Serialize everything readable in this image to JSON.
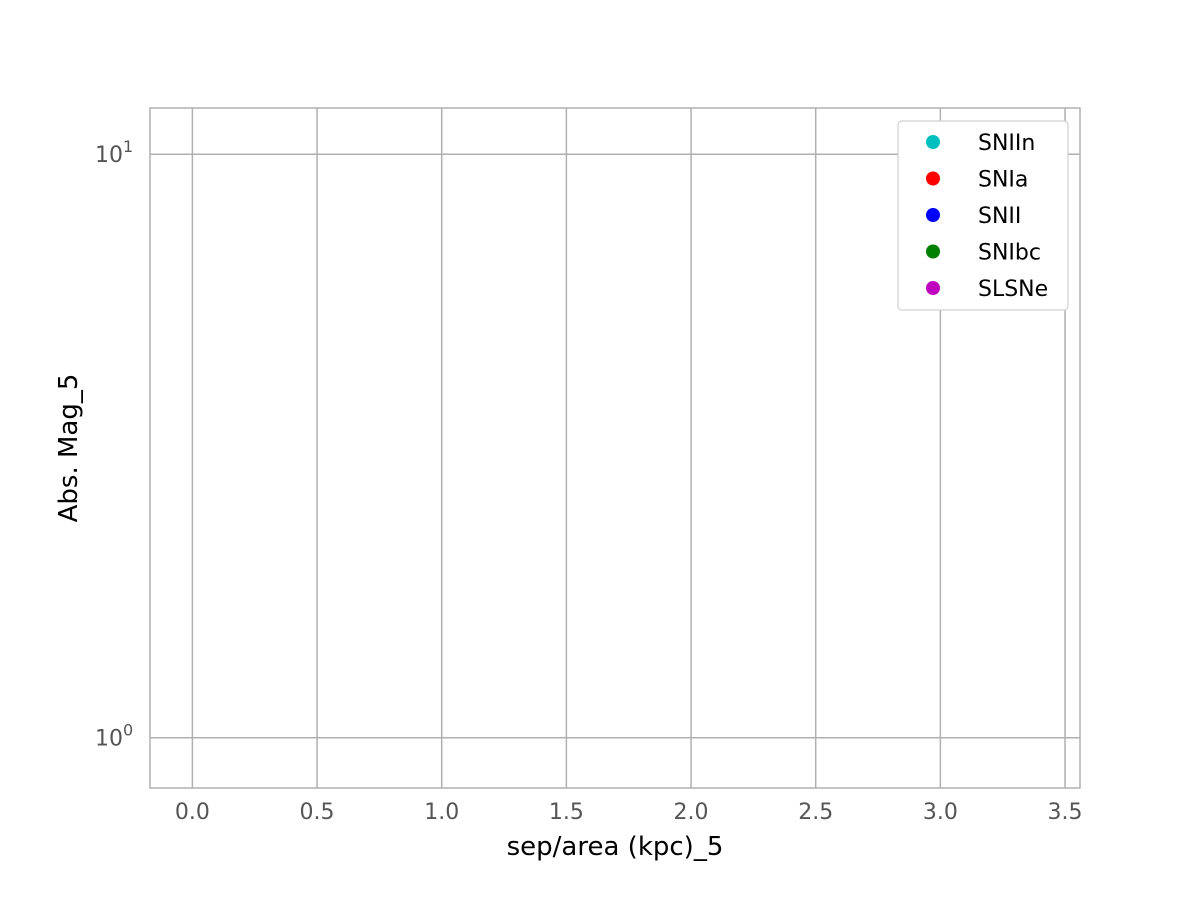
{
  "chart_data": {
    "type": "scatter",
    "xlabel": "sep/area (kpc)_5",
    "ylabel": "Abs. Mag_5",
    "xlim": [
      -0.17,
      3.56
    ],
    "ylim": [
      0.82,
      12.0
    ],
    "yscale": "log",
    "grid": true,
    "legend_position": "top-right",
    "x_ticks": [
      {
        "value": 0.0,
        "label": "0.0"
      },
      {
        "value": 0.5,
        "label": "0.5"
      },
      {
        "value": 1.0,
        "label": "1.0"
      },
      {
        "value": 1.5,
        "label": "1.5"
      },
      {
        "value": 2.0,
        "label": "2.0"
      },
      {
        "value": 2.5,
        "label": "2.5"
      },
      {
        "value": 3.0,
        "label": "3.0"
      },
      {
        "value": 3.5,
        "label": "3.5"
      }
    ],
    "y_ticks": [
      {
        "value": 1,
        "base": "10",
        "exp": "0"
      },
      {
        "value": 10,
        "base": "10",
        "exp": "1"
      }
    ],
    "series": [
      {
        "name": "SNIIn",
        "color": "#00bfbf",
        "points": []
      },
      {
        "name": "SNIa",
        "color": "#ff0000",
        "points": []
      },
      {
        "name": "SNII",
        "color": "#0000ff",
        "points": []
      },
      {
        "name": "SNIbc",
        "color": "#008000",
        "points": []
      },
      {
        "name": "SLSNe",
        "color": "#bf00bf",
        "points": []
      }
    ]
  }
}
